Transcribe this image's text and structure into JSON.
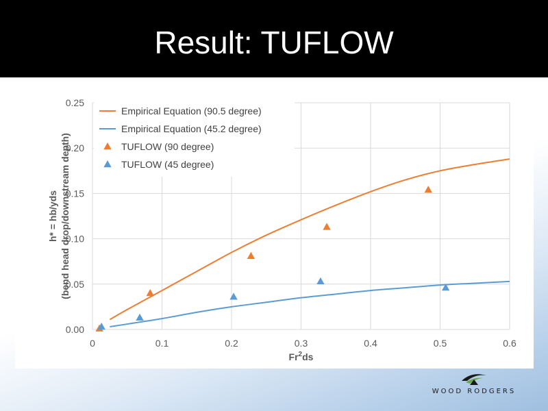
{
  "slide": {
    "title": "Result: TUFLOW",
    "logo_text": "WOOD RODGERS"
  },
  "colors": {
    "orange": "#ED7D31",
    "blue": "#5B9BD5",
    "grid": "#D9D9D9",
    "title_bar": "#000000"
  },
  "chart_data": {
    "type": "scatter",
    "title": "",
    "xlabel": "Fr²ds",
    "xlabel_main": "Fr",
    "xlabel_sup": "2",
    "xlabel_sub": "ds",
    "ylabel": "h* = hb/yds",
    "ylabel_line2": "(bend head drop/downstream depth)",
    "xlim": [
      0,
      0.6
    ],
    "ylim": [
      0,
      0.25
    ],
    "xticks": [
      "0",
      "0.1",
      "0.2",
      "0.3",
      "0.4",
      "0.5",
      "0.6"
    ],
    "yticks": [
      "0.00",
      "0.05",
      "0.10",
      "0.15",
      "0.20",
      "0.25"
    ],
    "grid": true,
    "legend_position": "top-left",
    "series": [
      {
        "name": "Empirical Equation (90.5 degree)",
        "kind": "line",
        "color": "#ED7D31",
        "x": [
          0.025,
          0.05,
          0.1,
          0.15,
          0.2,
          0.25,
          0.3,
          0.35,
          0.4,
          0.45,
          0.5,
          0.55,
          0.6
        ],
        "y": [
          0.011,
          0.022,
          0.043,
          0.064,
          0.085,
          0.104,
          0.121,
          0.137,
          0.152,
          0.165,
          0.175,
          0.182,
          0.188
        ]
      },
      {
        "name": "Empirical Equation (45.2 degree)",
        "kind": "line",
        "color": "#5B9BD5",
        "x": [
          0.025,
          0.05,
          0.1,
          0.15,
          0.2,
          0.25,
          0.3,
          0.35,
          0.4,
          0.45,
          0.5,
          0.55,
          0.6
        ],
        "y": [
          0.003,
          0.006,
          0.012,
          0.019,
          0.025,
          0.03,
          0.035,
          0.039,
          0.043,
          0.046,
          0.049,
          0.051,
          0.053
        ]
      },
      {
        "name": "TUFLOW (90 degree)",
        "kind": "scatter",
        "marker": "triangle",
        "color": "#ED7D31",
        "x": [
          0.01,
          0.083,
          0.228,
          0.337,
          0.483
        ],
        "y": [
          0.001,
          0.04,
          0.081,
          0.113,
          0.154
        ]
      },
      {
        "name": "TUFLOW (45 degree)",
        "kind": "scatter",
        "marker": "triangle",
        "color": "#5B9BD5",
        "x": [
          0.013,
          0.068,
          0.203,
          0.328,
          0.508
        ],
        "y": [
          0.003,
          0.013,
          0.036,
          0.053,
          0.046
        ]
      }
    ]
  }
}
